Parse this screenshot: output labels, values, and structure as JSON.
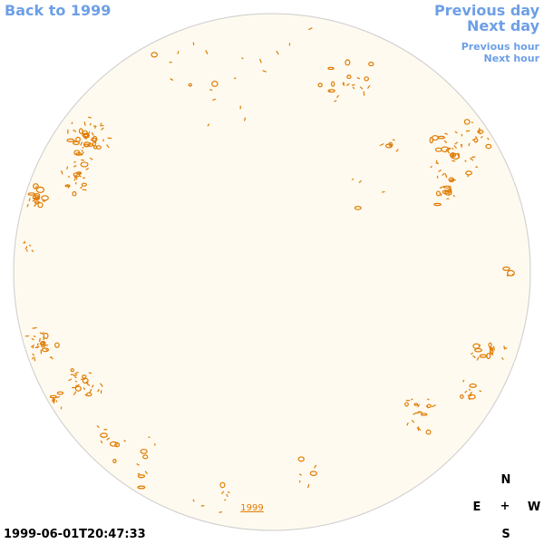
{
  "nav": {
    "back": "Back to 1999",
    "previous_day": "Previous day",
    "next_day": "Next day",
    "previous_hour": "Previous hour",
    "next_hour": "Next hour"
  },
  "timestamp": "1999-06-01T20:47:33",
  "year_label": "1999",
  "compass": {
    "north": "N",
    "east": "E",
    "center": "+",
    "west": "W",
    "south": "S"
  },
  "colors": {
    "link": "#6d9fe6",
    "disk_fill": "#fefaf0",
    "disk_outline": "#cccccc",
    "contour": "#e07b00"
  }
}
